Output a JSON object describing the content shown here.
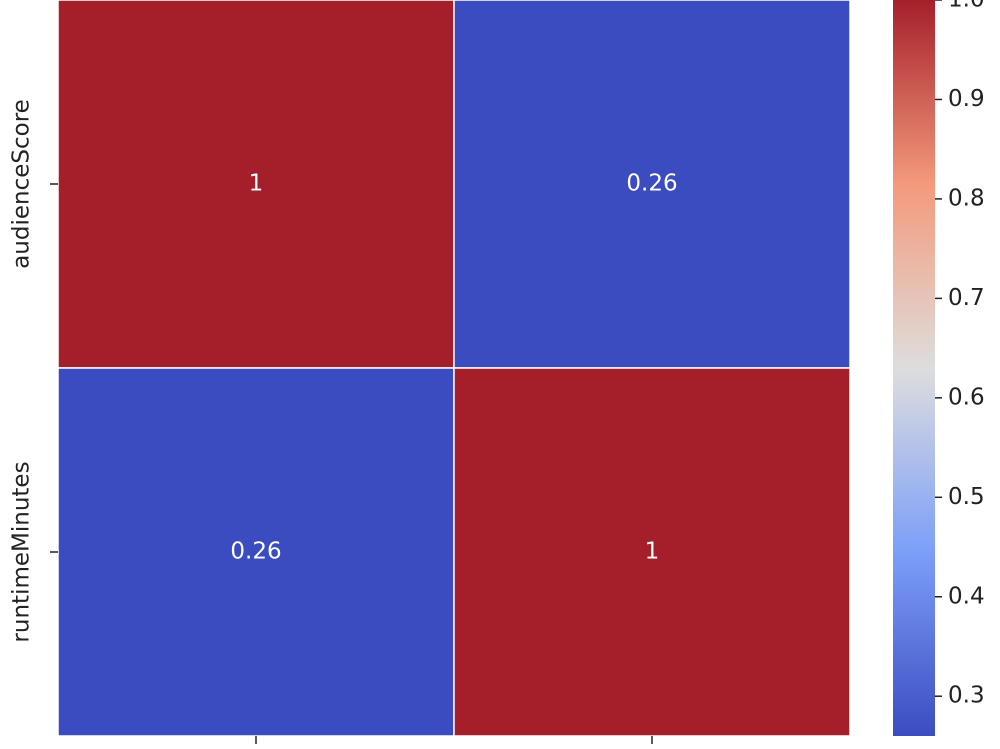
{
  "chart_data": {
    "type": "heatmap",
    "x_categories": [
      null,
      null
    ],
    "y_categories": [
      "audienceScore",
      "runtimeMinutes"
    ],
    "values": [
      [
        1,
        0.26
      ],
      [
        0.26,
        1
      ]
    ],
    "cmap": "coolwarm",
    "clim": [
      0.26,
      1
    ],
    "cticks": [
      0.3,
      0.4,
      0.5,
      0.6,
      0.7,
      0.8,
      0.9,
      {
        "value": 1,
        "label": "1.0"
      }
    ]
  }
}
